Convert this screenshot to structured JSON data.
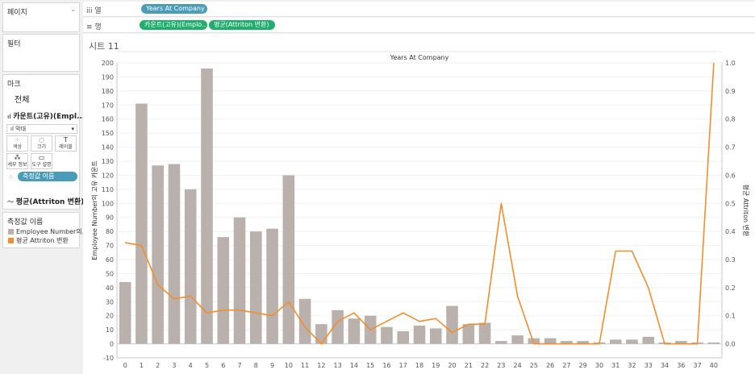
{
  "left_panel": {
    "pages_title": "페이지",
    "filters_title": "필터",
    "marks_title": "마크",
    "marks_all": "전체",
    "measure_header": "카운트(고유)(Empl...",
    "mark_type": "막대",
    "mark_buttons": [
      {
        "icon": "color-dots-icon",
        "label": "색상"
      },
      {
        "icon": "size-icon",
        "label": "크기"
      },
      {
        "icon": "label-icon",
        "label": "레이블"
      },
      {
        "icon": "detail-icon",
        "label": "세부 정보"
      },
      {
        "icon": "tooltip-icon",
        "label": "도구 설명"
      }
    ],
    "color_pill": "측정값 이름",
    "second_measure": "평균(Attriton 변환)",
    "legend_title": "측정값 이름",
    "legend": [
      {
        "label": "Employee Number의...",
        "color": "#bab0ac"
      },
      {
        "label": "평균 Attriton 변환",
        "color": "#f28e2b"
      }
    ]
  },
  "shelves": {
    "columns_label": "열",
    "columns_pills": [
      "Years At Company"
    ],
    "rows_label": "행",
    "rows_pills": [
      "카운트(고유)(Emplo..",
      "평균(Attriton 변환)"
    ]
  },
  "sheet": {
    "title": "시트 11"
  },
  "chart_data": {
    "type": "bar",
    "title": "Years At Company",
    "x_title": "Years At Company",
    "categories": [
      "0",
      "1",
      "2",
      "3",
      "4",
      "5",
      "6",
      "7",
      "8",
      "9",
      "10",
      "11",
      "12",
      "13",
      "14",
      "15",
      "16",
      "17",
      "18",
      "19",
      "20",
      "21",
      "22",
      "23",
      "24",
      "25",
      "26",
      "27",
      "29",
      "30",
      "31",
      "32",
      "33",
      "34",
      "36",
      "37",
      "40"
    ],
    "series": [
      {
        "name": "Employee Number의 고유 카운트",
        "kind": "bar",
        "axis": "left",
        "color": "#bab0ac",
        "values": [
          44,
          171,
          127,
          128,
          110,
          196,
          76,
          90,
          80,
          82,
          120,
          32,
          14,
          24,
          18,
          20,
          12,
          9,
          13,
          11,
          27,
          14,
          15,
          2,
          6,
          4,
          4,
          2,
          2,
          1,
          3,
          3,
          5,
          1,
          2,
          1,
          1
        ]
      },
      {
        "name": "평균 Attriton 변환",
        "kind": "line",
        "axis": "right",
        "color": "#f28e2b",
        "values": [
          0.36,
          0.35,
          0.21,
          0.16,
          0.17,
          0.11,
          0.12,
          0.12,
          0.11,
          0.1,
          0.15,
          0.06,
          0.0,
          0.08,
          0.11,
          0.05,
          0.08,
          0.11,
          0.08,
          0.09,
          0.04,
          0.07,
          0.07,
          0.5,
          0.17,
          0.0,
          0.0,
          0.0,
          0.0,
          0.0,
          0.33,
          0.33,
          0.2,
          0.0,
          0.0,
          0.0,
          1.0
        ]
      }
    ],
    "y_left": {
      "label": "Employee Number의 고유 카운트",
      "min": -10,
      "max": 200,
      "ticks": [
        -10,
        0,
        10,
        20,
        30,
        40,
        50,
        60,
        70,
        80,
        90,
        100,
        110,
        120,
        130,
        140,
        150,
        160,
        170,
        180,
        190,
        200
      ]
    },
    "y_right": {
      "label": "평균 Attriton 변환",
      "min": -0.05,
      "max": 1.0,
      "ticks": [
        0.0,
        0.1,
        0.2,
        0.3,
        0.4,
        0.5,
        0.6,
        0.7,
        0.8,
        0.9,
        1.0
      ]
    },
    "grid": true
  }
}
